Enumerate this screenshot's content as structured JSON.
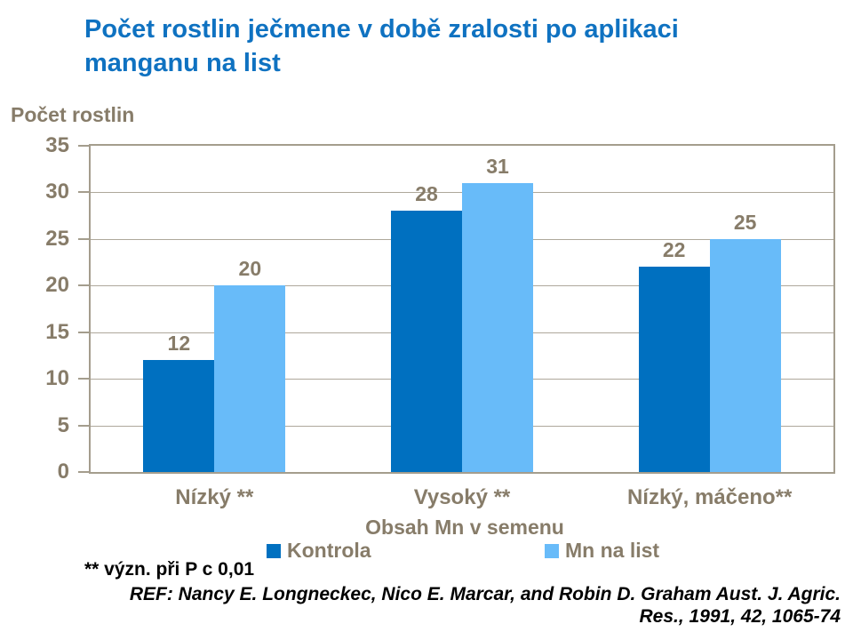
{
  "header": {
    "title_line1": "Počet rostlin ječmene v době zralosti po aplikaci",
    "title_line2": "manganu na list"
  },
  "footnote": "** význ. při P c 0,01",
  "reference": {
    "line1": "REF: Nancy E. Longneckec, Nico E. Marcar, and Robin D. Graham Aust. J. Agric.",
    "line2": "Res., 1991, 42, 1065-74"
  },
  "colors": {
    "title_blue": "#0F72C1",
    "axis_text_brown": "#877C69",
    "axis_border": "#A49D8D",
    "gridline": "#AEA89B",
    "series_dark_blue": "#0070C0",
    "series_light_blue": "#68BBF9",
    "footnote_black": "#000000"
  },
  "chart_data": {
    "type": "bar",
    "title": "Počet rostlin ječmene v době zralosti po aplikaci manganu na list",
    "categories": [
      "Nízký **",
      "Vysoký **",
      "Nízký, máčeno**"
    ],
    "series": [
      {
        "name": "Kontrola",
        "values": [
          12,
          28,
          22
        ],
        "color": "#0070C0"
      },
      {
        "name": "Mn na list",
        "values": [
          20,
          31,
          25
        ],
        "color": "#68BBF9"
      }
    ],
    "xlabel": "Obsah Mn v semenu",
    "ylabel": "Počet rostlin",
    "ylim": [
      0,
      35
    ],
    "ytick_step": 5,
    "grid": true,
    "legend_position": "bottom",
    "data_labels": true
  }
}
